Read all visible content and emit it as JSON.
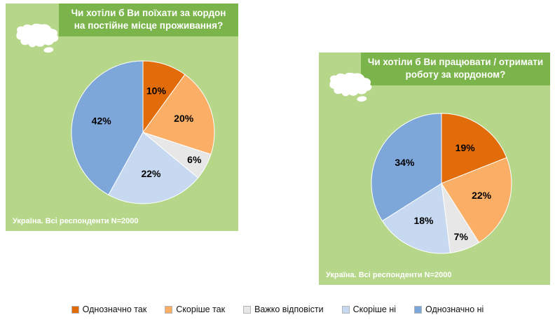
{
  "chart_data": [
    {
      "type": "pie",
      "title": "Чи хотіли б Ви поїхати за кордон на постійне місце проживання?",
      "footnote": "Україна. Всі респонденти N=2000",
      "categories": [
        "Однозначно так",
        "Скоріше так",
        "Важко відповісти",
        "Скоріше ні",
        "Однозначно ні"
      ],
      "values": [
        10,
        20,
        6,
        22,
        42
      ],
      "value_labels": [
        "10%",
        "20%",
        "6%",
        "22%",
        "42%"
      ],
      "colors": [
        "#e36c0a",
        "#fbae66",
        "#e7e7e7",
        "#c6d9f0",
        "#7da6d9"
      ],
      "start_angle_deg": 0,
      "direction": "clockwise",
      "legend_position": "bottom-shared"
    },
    {
      "type": "pie",
      "title": "Чи хотіли б Ви працювати / отримати роботу за кордоном?",
      "footnote": "Україна. Всі респонденти N=2000",
      "categories": [
        "Однозначно так",
        "Скоріше так",
        "Важко відповісти",
        "Скоріше ні",
        "Однозначно ні"
      ],
      "values": [
        19,
        22,
        7,
        18,
        34
      ],
      "value_labels": [
        "19%",
        "22%",
        "7%",
        "18%",
        "34%"
      ],
      "colors": [
        "#e36c0a",
        "#fbae66",
        "#e7e7e7",
        "#c6d9f0",
        "#7da6d9"
      ],
      "start_angle_deg": 0,
      "direction": "clockwise",
      "legend_position": "bottom-shared"
    }
  ],
  "legend": {
    "items": [
      {
        "label": "Однозначно так",
        "color": "#e36c0a"
      },
      {
        "label": "Скоріше так",
        "color": "#fbae66"
      },
      {
        "label": "Важко відповісти",
        "color": "#e7e7e7"
      },
      {
        "label": "Скоріше ні",
        "color": "#c6d9f0"
      },
      {
        "label": "Однозначно ні",
        "color": "#7da6d9"
      }
    ]
  },
  "colors": {
    "card_background": "#b6d78a",
    "title_band_background": "#7cb44c",
    "title_text": "#ffffff",
    "footnote_text": "#ffffff",
    "label_text": "#000000",
    "page_background": "#ffffff"
  }
}
